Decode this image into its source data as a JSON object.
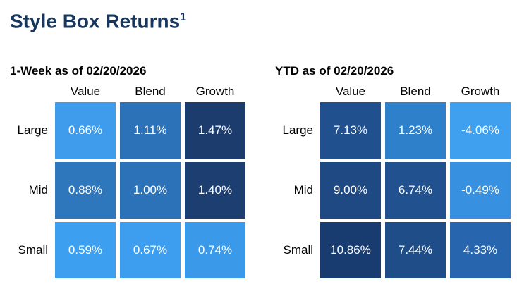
{
  "page": {
    "title": "Style Box Returns",
    "title_superscript": "1",
    "title_color": "#17375E"
  },
  "chart_data": [
    {
      "type": "heatmap",
      "title": "1-Week as of 02/20/2026",
      "columns": [
        "Value",
        "Blend",
        "Growth"
      ],
      "rows": [
        "Large",
        "Mid",
        "Small"
      ],
      "values": [
        [
          "0.66%",
          "1.11%",
          "1.47%"
        ],
        [
          "0.88%",
          "1.00%",
          "1.40%"
        ],
        [
          "0.59%",
          "0.67%",
          "0.74%"
        ]
      ],
      "colors": [
        [
          "#3F9CEC",
          "#2B72B9",
          "#1B3C6C"
        ],
        [
          "#2E77BD",
          "#2B72B9",
          "#1C3E70"
        ],
        [
          "#3C9FF0",
          "#3D9DEE",
          "#3A99E9"
        ]
      ],
      "legend": "cell color darkens with higher return",
      "value_text_color": "#FFFFFF"
    },
    {
      "type": "heatmap",
      "title": "YTD as of 02/20/2026",
      "columns": [
        "Value",
        "Blend",
        "Growth"
      ],
      "rows": [
        "Large",
        "Mid",
        "Small"
      ],
      "values": [
        [
          "7.13%",
          "1.23%",
          "-4.06%"
        ],
        [
          "9.00%",
          "6.74%",
          "-0.49%"
        ],
        [
          "10.86%",
          "7.44%",
          "4.33%"
        ]
      ],
      "colors": [
        [
          "#20508E",
          "#2F80CA",
          "#3FA0EF"
        ],
        [
          "#1E4983",
          "#21528F",
          "#3890E0"
        ],
        [
          "#193C70",
          "#1F4D87",
          "#2766AE"
        ]
      ],
      "legend": "cell color darkens with higher return",
      "value_text_color": "#FFFFFF"
    }
  ]
}
